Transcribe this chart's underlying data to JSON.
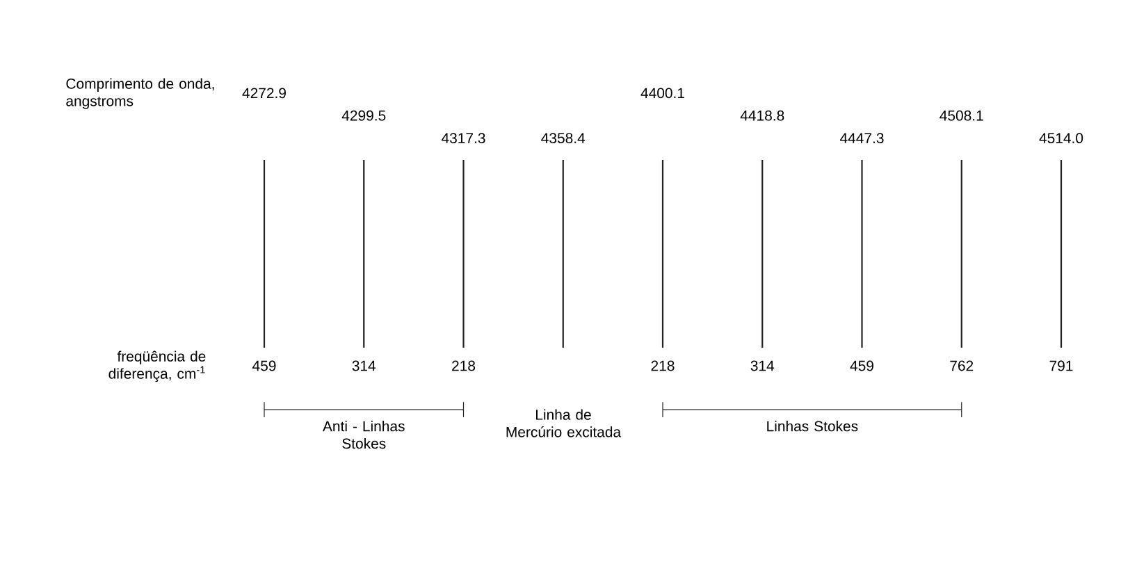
{
  "chart_data": {
    "type": "other",
    "color": "#222222",
    "data_labels": true,
    "categories": [
      "4272.9",
      "4299.5",
      "4317.3",
      "4358.4",
      "4400.1",
      "4418.8",
      "4447.3",
      "4508.1",
      "4514.0"
    ],
    "values": [
      459,
      314,
      218,
      null,
      218,
      314,
      459,
      762,
      791
    ],
    "annotations": [
      "Comprimento de onda, angstroms",
      "freqüência de diferença, cm$^{-1}$",
      "Linha de Mercúrio excitada",
      "Anti - Linhas Stokes",
      "Linhas Stokes"
    ]
  }
}
